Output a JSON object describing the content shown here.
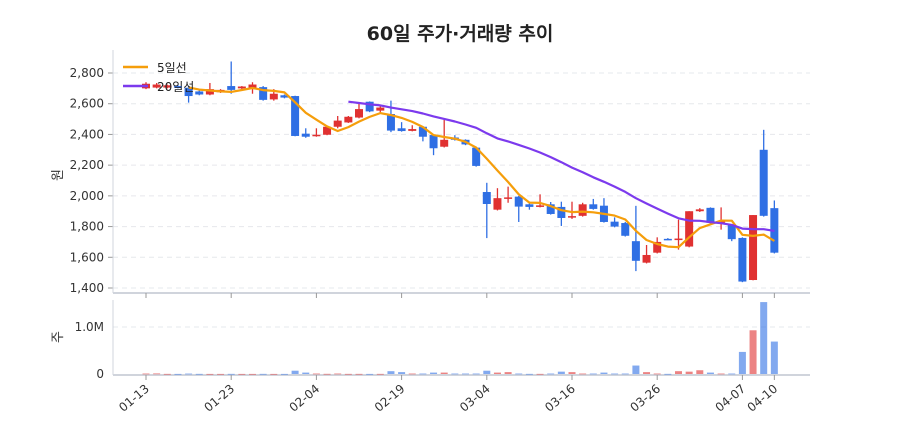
{
  "chart_data": {
    "type": "candlestick",
    "title": "60일 주가·거래량 추이",
    "price_axis": {
      "label": "원",
      "ylim": [
        1380,
        2920
      ],
      "ticks": [
        1400,
        1600,
        1800,
        2000,
        2200,
        2400,
        2600,
        2800
      ],
      "tick_labels": [
        "1,400",
        "1,600",
        "1,800",
        "2,000",
        "2,200",
        "2,400",
        "2,600",
        "2,800"
      ],
      "grid": true
    },
    "volume_axis": {
      "label": "주",
      "ylim": [
        0,
        1600000
      ],
      "ticks": [
        0,
        1000000
      ],
      "tick_labels": [
        "0",
        "1.0M"
      ],
      "grid": true
    },
    "x_ticks": [
      {
        "index": 0,
        "label": "01-13"
      },
      {
        "index": 8,
        "label": "01-23"
      },
      {
        "index": 16,
        "label": "02-04"
      },
      {
        "index": 24,
        "label": "02-19"
      },
      {
        "index": 32,
        "label": "03-04"
      },
      {
        "index": 40,
        "label": "03-16"
      },
      {
        "index": 48,
        "label": "03-26"
      },
      {
        "index": 56,
        "label": "04-07"
      },
      {
        "index": 59,
        "label": "04-10"
      }
    ],
    "legend": {
      "position": "top-left",
      "items": [
        {
          "name": "5일선",
          "color": "#f59e0b"
        },
        {
          "name": "20일선",
          "color": "#7c3aed"
        }
      ]
    },
    "colors": {
      "up": "#e03131",
      "down": "#2f6fe4",
      "ma5": "#f59e0b",
      "ma20": "#7c3aed"
    },
    "ma_windows": [
      5,
      20
    ],
    "ohlc": [
      [
        2700,
        2740,
        2695,
        2730
      ],
      [
        2705,
        2735,
        2700,
        2725
      ],
      [
        2705,
        2725,
        2700,
        2720
      ],
      [
        2715,
        2720,
        2700,
        2705
      ],
      [
        2704,
        2715,
        2607,
        2650
      ],
      [
        2680,
        2690,
        2655,
        2660
      ],
      [
        2660,
        2735,
        2655,
        2695
      ],
      [
        2675,
        2695,
        2670,
        2690
      ],
      [
        2715,
        2875,
        2665,
        2690
      ],
      [
        2700,
        2715,
        2695,
        2712
      ],
      [
        2705,
        2740,
        2665,
        2725
      ],
      [
        2708,
        2715,
        2620,
        2625
      ],
      [
        2628,
        2695,
        2620,
        2665
      ],
      [
        2655,
        2660,
        2635,
        2640
      ],
      [
        2650,
        2652,
        2388,
        2390
      ],
      [
        2405,
        2440,
        2378,
        2385
      ],
      [
        2388,
        2440,
        2385,
        2398
      ],
      [
        2398,
        2455,
        2395,
        2450
      ],
      [
        2450,
        2520,
        2440,
        2490
      ],
      [
        2478,
        2520,
        2475,
        2515
      ],
      [
        2510,
        2605,
        2505,
        2565
      ],
      [
        2613,
        2615,
        2545,
        2550
      ],
      [
        2555,
        2585,
        2535,
        2575
      ],
      [
        2533,
        2620,
        2415,
        2425
      ],
      [
        2440,
        2480,
        2418,
        2422
      ],
      [
        2423,
        2460,
        2420,
        2435
      ],
      [
        2450,
        2455,
        2355,
        2385
      ],
      [
        2396,
        2400,
        2265,
        2310
      ],
      [
        2320,
        2495,
        2315,
        2365
      ],
      [
        2380,
        2395,
        2360,
        2365
      ],
      [
        2365,
        2368,
        2330,
        2335
      ],
      [
        2314,
        2320,
        2190,
        2195
      ],
      [
        2025,
        2085,
        1725,
        1947
      ],
      [
        1910,
        2050,
        1905,
        1985
      ],
      [
        1983,
        2060,
        1955,
        1990
      ],
      [
        1995,
        2000,
        1830,
        1930
      ],
      [
        1945,
        1950,
        1910,
        1928
      ],
      [
        1928,
        2010,
        1925,
        1938
      ],
      [
        1945,
        1960,
        1878,
        1882
      ],
      [
        1928,
        1962,
        1804,
        1856
      ],
      [
        1860,
        1962,
        1850,
        1868
      ],
      [
        1870,
        1955,
        1865,
        1945
      ],
      [
        1945,
        1980,
        1910,
        1915
      ],
      [
        1936,
        1985,
        1826,
        1830
      ],
      [
        1832,
        1860,
        1795,
        1800
      ],
      [
        1823,
        1830,
        1735,
        1740
      ],
      [
        1705,
        1935,
        1510,
        1577
      ],
      [
        1565,
        1680,
        1560,
        1615
      ],
      [
        1630,
        1730,
        1625,
        1700
      ],
      [
        1720,
        1725,
        1712,
        1715
      ],
      [
        1712,
        1845,
        1650,
        1722
      ],
      [
        1670,
        1900,
        1665,
        1900
      ],
      [
        1900,
        1920,
        1895,
        1912
      ],
      [
        1922,
        1925,
        1820,
        1825
      ],
      [
        1828,
        1925,
        1780,
        1835
      ],
      [
        1810,
        1812,
        1705,
        1718
      ],
      [
        1726,
        1730,
        1438,
        1442
      ],
      [
        1452,
        1875,
        1450,
        1875
      ],
      [
        2300,
        2430,
        1865,
        1870
      ],
      [
        1920,
        1970,
        1625,
        1630
      ]
    ],
    "volume": [
      10000,
      12000,
      3000,
      2000,
      9000,
      3000,
      2000,
      2000,
      3000,
      2000,
      2000,
      3000,
      2000,
      2000,
      70000,
      30000,
      10000,
      4000,
      10000,
      3000,
      3000,
      2000,
      3000,
      60000,
      40000,
      10000,
      10000,
      30000,
      30000,
      10000,
      10000,
      10000,
      70000,
      30000,
      40000,
      10000,
      3000,
      3000,
      10000,
      50000,
      40000,
      10000,
      10000,
      30000,
      10000,
      10000,
      180000,
      40000,
      10000,
      3000,
      60000,
      50000,
      80000,
      30000,
      10000,
      10000,
      470000,
      930000,
      1530000,
      690000
    ]
  }
}
